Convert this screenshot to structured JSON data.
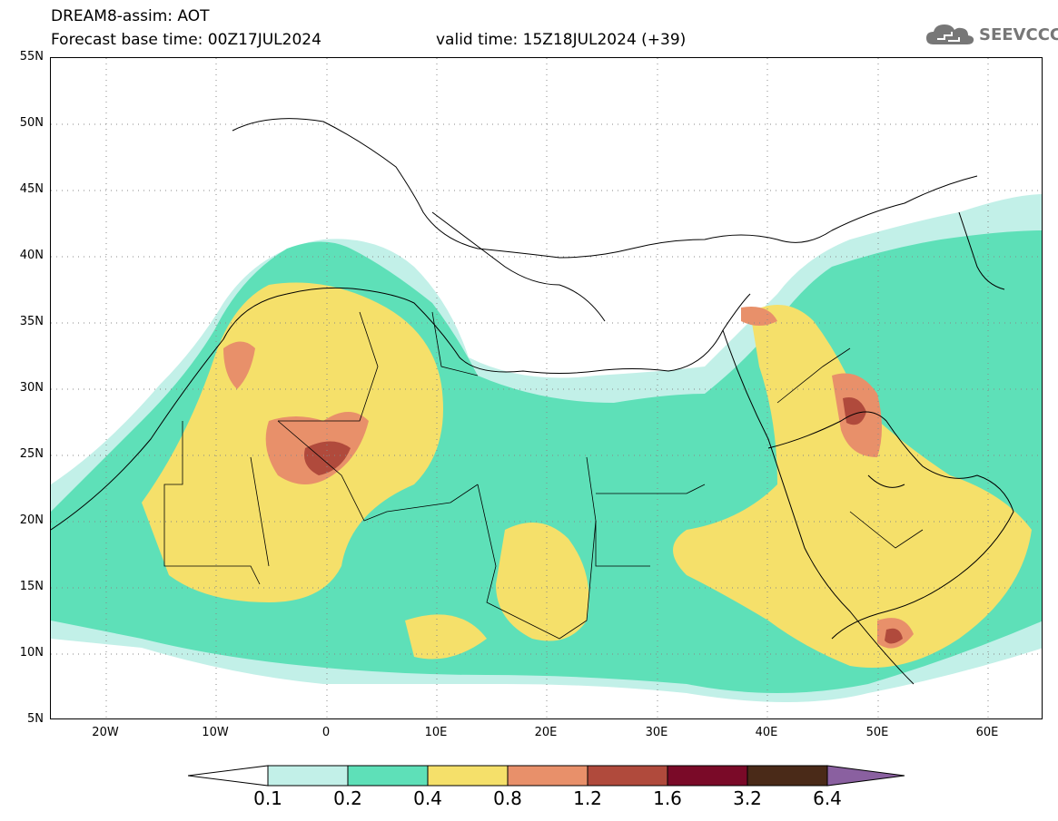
{
  "header": {
    "title": "DREAM8-assim: AOT",
    "base_time": "Forecast base time: 00Z17JUL2024",
    "valid_time": "valid time: 15Z18JUL2024 (+39)"
  },
  "logo": {
    "text": "SEEVCCC",
    "icon": "cloud-icon",
    "color": "#777777"
  },
  "map": {
    "projection": "cylindrical",
    "lon_range": [
      -25,
      65
    ],
    "lat_range": [
      5,
      55
    ],
    "lat_labels": [
      "55N",
      "50N",
      "45N",
      "40N",
      "35N",
      "30N",
      "25N",
      "20N",
      "15N",
      "10N",
      "5N"
    ],
    "lat_values": [
      55,
      50,
      45,
      40,
      35,
      30,
      25,
      20,
      15,
      10,
      5
    ],
    "lon_labels": [
      "20W",
      "10W",
      "0",
      "10E",
      "20E",
      "30E",
      "40E",
      "50E",
      "60E"
    ],
    "lon_values": [
      -20,
      -10,
      0,
      10,
      20,
      30,
      40,
      50,
      60
    ],
    "grid": "dotted"
  },
  "colorbar": {
    "labels": [
      "0.1",
      "0.2",
      "0.4",
      "0.8",
      "1.2",
      "1.6",
      "3.2",
      "6.4"
    ],
    "colors": [
      "#ffffff",
      "#c2f0e8",
      "#5ee0b8",
      "#f5e06a",
      "#e8906a",
      "#b04a3c",
      "#7a0a28",
      "#4a2a18",
      "#8a60a0"
    ]
  }
}
